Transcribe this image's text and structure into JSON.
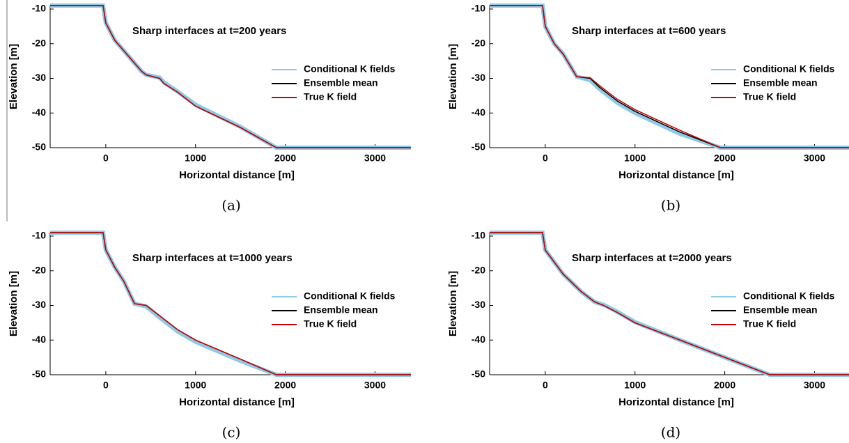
{
  "chart_data": [
    {
      "type": "line",
      "title": "Sharp interfaces at t=200 years",
      "caption": "(a)",
      "x_label": "Horizontal distance [m]",
      "y_label": "Elevation [m]",
      "x": [
        -620,
        -30,
        0,
        100,
        200,
        300,
        400,
        450,
        600,
        650,
        800,
        1000,
        1500,
        1900,
        3400
      ],
      "series": [
        {
          "name": "Conditional K fields",
          "color": "#8ecae6",
          "values": [
            -9,
            -9,
            -14,
            -19,
            -22,
            -25,
            -28,
            -29,
            -29.8,
            -31.2,
            -33.8,
            -37.6,
            -44,
            -50,
            -50
          ]
        },
        {
          "name": "Ensemble mean",
          "color": "#000000",
          "values": [
            -9,
            -9,
            -14,
            -19,
            -22,
            -25,
            -28,
            -29,
            -30,
            -31.5,
            -34,
            -38,
            -44.2,
            -50,
            -50
          ]
        },
        {
          "name": "True K field",
          "color": "#cc0000",
          "values": [
            -9,
            -9,
            -14,
            -19,
            -22,
            -25,
            -28,
            -29,
            -30,
            -31.5,
            -34,
            -38,
            -44.2,
            -50,
            -50
          ]
        }
      ],
      "xlim": [
        -620,
        3400
      ],
      "ylim": [
        -50,
        -9
      ],
      "xticks": [
        0,
        1000,
        2000,
        3000
      ],
      "yticks": [
        -10,
        -20,
        -30,
        -40,
        -50
      ]
    },
    {
      "type": "line",
      "title": "Sharp interfaces at t=600 years",
      "caption": "(b)",
      "x_label": "Horizontal distance [m]",
      "y_label": "Elevation [m]",
      "x": [
        -620,
        -30,
        0,
        100,
        200,
        350,
        500,
        600,
        800,
        1000,
        1500,
        1950,
        3400
      ],
      "series": [
        {
          "name": "Conditional K fields",
          "color": "#8ecae6",
          "values": [
            -9,
            -9,
            -15,
            -20,
            -23,
            -29.5,
            -30.5,
            -33,
            -37,
            -40,
            -46,
            -50,
            -50
          ]
        },
        {
          "name": "Ensemble mean",
          "color": "#000000",
          "values": [
            -9,
            -9,
            -15,
            -20,
            -23,
            -29.5,
            -30,
            -32.5,
            -36.5,
            -39.5,
            -45.5,
            -50,
            -50
          ]
        },
        {
          "name": "True K field",
          "color": "#cc0000",
          "values": [
            -9,
            -9,
            -15,
            -20,
            -23,
            -29.5,
            -29.8,
            -32,
            -36,
            -39,
            -45,
            -50,
            -50
          ]
        }
      ],
      "xlim": [
        -620,
        3400
      ],
      "ylim": [
        -50,
        -9
      ],
      "xticks": [
        0,
        1000,
        2000,
        3000
      ],
      "yticks": [
        -10,
        -20,
        -30,
        -40,
        -50
      ]
    },
    {
      "type": "line",
      "title": "Sharp interfaces at t=1000 years",
      "caption": "(c)",
      "x_label": "Horizontal distance [m]",
      "y_label": "Elevation [m]",
      "x": [
        -620,
        -30,
        0,
        100,
        200,
        320,
        450,
        600,
        800,
        1000,
        1500,
        1900,
        3400
      ],
      "series": [
        {
          "name": "Conditional K fields",
          "color": "#8ecae6",
          "values": [
            -9,
            -9,
            -14,
            -19,
            -23,
            -29.5,
            -30.3,
            -33.5,
            -37.5,
            -40.5,
            -46,
            -50,
            -50
          ]
        },
        {
          "name": "Ensemble mean",
          "color": "#000000",
          "values": [
            -9,
            -9,
            -14,
            -19,
            -23,
            -29.5,
            -30,
            -33,
            -37,
            -40,
            -45.5,
            -50,
            -50
          ]
        },
        {
          "name": "True K field",
          "color": "#cc0000",
          "values": [
            -9,
            -9,
            -14,
            -19,
            -23,
            -29.5,
            -30,
            -33,
            -37,
            -40,
            -45.5,
            -50,
            -50
          ]
        }
      ],
      "xlim": [
        -620,
        3400
      ],
      "ylim": [
        -50,
        -9
      ],
      "xticks": [
        0,
        1000,
        2000,
        3000
      ],
      "yticks": [
        -10,
        -20,
        -30,
        -40,
        -50
      ]
    },
    {
      "type": "line",
      "title": "Sharp interfaces at t=2000 years",
      "caption": "(d)",
      "x_label": "Horizontal distance [m]",
      "y_label": "Elevation [m]",
      "x": [
        -620,
        -30,
        0,
        200,
        400,
        550,
        650,
        800,
        1000,
        1500,
        2000,
        2500,
        3400
      ],
      "series": [
        {
          "name": "Conditional K fields",
          "color": "#8ecae6",
          "values": [
            -9,
            -9,
            -14,
            -21,
            -26,
            -29,
            -29.8,
            -31.8,
            -34.8,
            -40,
            -45,
            -50,
            -50
          ]
        },
        {
          "name": "Ensemble mean",
          "color": "#000000",
          "values": [
            -9,
            -9,
            -14,
            -21,
            -26,
            -29,
            -30,
            -32,
            -35,
            -40,
            -45,
            -50,
            -50
          ]
        },
        {
          "name": "True K field",
          "color": "#cc0000",
          "values": [
            -9,
            -9,
            -14,
            -21,
            -26,
            -29,
            -30,
            -32,
            -35,
            -40,
            -45,
            -50,
            -50
          ]
        }
      ],
      "xlim": [
        -620,
        3400
      ],
      "ylim": [
        -50,
        -9
      ],
      "xticks": [
        0,
        1000,
        2000,
        3000
      ],
      "yticks": [
        -10,
        -20,
        -30,
        -40,
        -50
      ]
    }
  ]
}
